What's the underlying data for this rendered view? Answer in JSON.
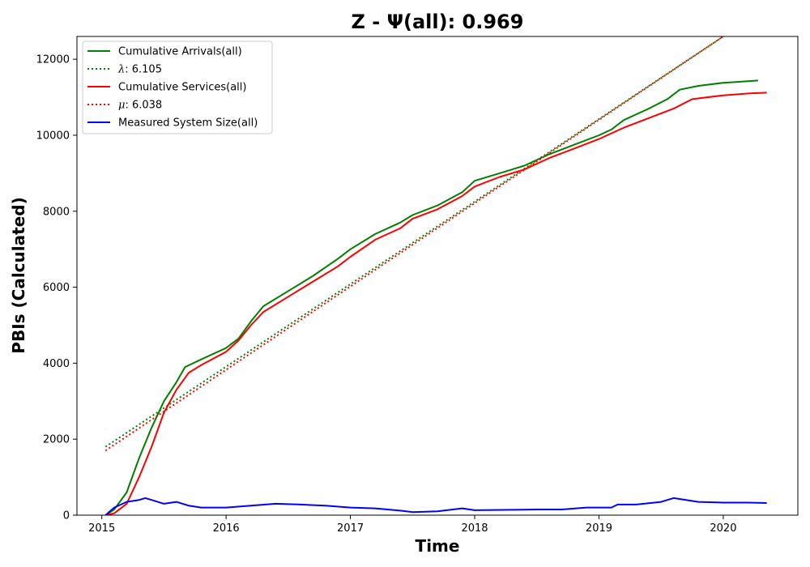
{
  "chart_data": {
    "type": "line",
    "title": "Z -  Ψ(all): 0.969",
    "xlabel": "Time",
    "ylabel": "PBIs (Calculated)",
    "xlim": [
      2014.8,
      2020.6
    ],
    "ylim": [
      0,
      12600
    ],
    "x_ticks": [
      2015,
      2016,
      2017,
      2018,
      2019,
      2020
    ],
    "x_tick_labels": [
      "2015",
      "2016",
      "2017",
      "2018",
      "2019",
      "2020"
    ],
    "y_ticks": [
      0,
      2000,
      4000,
      6000,
      8000,
      10000,
      12000
    ],
    "y_tick_labels": [
      "0",
      "2000",
      "4000",
      "6000",
      "8000",
      "10000",
      "12000"
    ],
    "grid": false,
    "legend_position": "top-left",
    "series": [
      {
        "name": "Cumulative Arrivals(all)",
        "color": "#008000",
        "style": "solid",
        "points": [
          [
            2015.03,
            0
          ],
          [
            2015.1,
            150
          ],
          [
            2015.2,
            600
          ],
          [
            2015.3,
            1500
          ],
          [
            2015.4,
            2300
          ],
          [
            2015.5,
            3000
          ],
          [
            2015.6,
            3500
          ],
          [
            2015.67,
            3900
          ],
          [
            2015.8,
            4100
          ],
          [
            2016.0,
            4400
          ],
          [
            2016.1,
            4650
          ],
          [
            2016.2,
            5100
          ],
          [
            2016.3,
            5500
          ],
          [
            2016.5,
            5900
          ],
          [
            2016.7,
            6300
          ],
          [
            2016.9,
            6750
          ],
          [
            2017.0,
            7000
          ],
          [
            2017.2,
            7400
          ],
          [
            2017.4,
            7700
          ],
          [
            2017.5,
            7900
          ],
          [
            2017.7,
            8150
          ],
          [
            2017.9,
            8500
          ],
          [
            2018.0,
            8800
          ],
          [
            2018.2,
            9000
          ],
          [
            2018.4,
            9200
          ],
          [
            2018.6,
            9500
          ],
          [
            2018.8,
            9750
          ],
          [
            2019.0,
            10000
          ],
          [
            2019.1,
            10150
          ],
          [
            2019.2,
            10400
          ],
          [
            2019.4,
            10700
          ],
          [
            2019.55,
            10950
          ],
          [
            2019.65,
            11200
          ],
          [
            2019.8,
            11300
          ],
          [
            2020.0,
            11380
          ],
          [
            2020.1,
            11400
          ],
          [
            2020.28,
            11440
          ]
        ]
      },
      {
        "name": "λ: 6.105",
        "color": "#008000",
        "style": "dotted",
        "points": [
          [
            2015.03,
            1800
          ],
          [
            2020.0,
            12600
          ]
        ]
      },
      {
        "name": "Cumulative Services(all)",
        "color": "#ff0000",
        "style": "solid",
        "points": [
          [
            2015.03,
            0
          ],
          [
            2015.1,
            50
          ],
          [
            2015.2,
            300
          ],
          [
            2015.3,
            1000
          ],
          [
            2015.4,
            1800
          ],
          [
            2015.5,
            2700
          ],
          [
            2015.6,
            3300
          ],
          [
            2015.7,
            3750
          ],
          [
            2015.8,
            3950
          ],
          [
            2016.0,
            4300
          ],
          [
            2016.1,
            4600
          ],
          [
            2016.2,
            5000
          ],
          [
            2016.3,
            5350
          ],
          [
            2016.5,
            5750
          ],
          [
            2016.7,
            6150
          ],
          [
            2016.9,
            6550
          ],
          [
            2017.0,
            6800
          ],
          [
            2017.2,
            7250
          ],
          [
            2017.4,
            7550
          ],
          [
            2017.5,
            7800
          ],
          [
            2017.7,
            8050
          ],
          [
            2017.9,
            8400
          ],
          [
            2018.0,
            8650
          ],
          [
            2018.2,
            8900
          ],
          [
            2018.4,
            9100
          ],
          [
            2018.6,
            9400
          ],
          [
            2018.8,
            9650
          ],
          [
            2019.0,
            9900
          ],
          [
            2019.1,
            10050
          ],
          [
            2019.2,
            10200
          ],
          [
            2019.4,
            10450
          ],
          [
            2019.6,
            10700
          ],
          [
            2019.75,
            10950
          ],
          [
            2020.0,
            11050
          ],
          [
            2020.2,
            11100
          ],
          [
            2020.35,
            11120
          ]
        ]
      },
      {
        "name": "μ: 6.038",
        "color": "#ff0000",
        "style": "dotted",
        "points": [
          [
            2015.03,
            1700
          ],
          [
            2020.0,
            12600
          ]
        ]
      },
      {
        "name": "Measured System Size(all)",
        "color": "#0000ff",
        "style": "solid",
        "points": [
          [
            2015.03,
            0
          ],
          [
            2015.1,
            200
          ],
          [
            2015.2,
            350
          ],
          [
            2015.3,
            400
          ],
          [
            2015.35,
            450
          ],
          [
            2015.4,
            400
          ],
          [
            2015.5,
            300
          ],
          [
            2015.6,
            350
          ],
          [
            2015.7,
            250
          ],
          [
            2015.8,
            200
          ],
          [
            2016.0,
            200
          ],
          [
            2016.2,
            250
          ],
          [
            2016.4,
            300
          ],
          [
            2016.6,
            280
          ],
          [
            2016.8,
            250
          ],
          [
            2017.0,
            200
          ],
          [
            2017.2,
            180
          ],
          [
            2017.4,
            120
          ],
          [
            2017.5,
            80
          ],
          [
            2017.7,
            100
          ],
          [
            2017.9,
            180
          ],
          [
            2018.0,
            130
          ],
          [
            2018.3,
            140
          ],
          [
            2018.5,
            150
          ],
          [
            2018.7,
            150
          ],
          [
            2018.9,
            200
          ],
          [
            2019.1,
            200
          ],
          [
            2019.15,
            280
          ],
          [
            2019.3,
            280
          ],
          [
            2019.5,
            350
          ],
          [
            2019.6,
            450
          ],
          [
            2019.7,
            400
          ],
          [
            2019.8,
            350
          ],
          [
            2020.0,
            330
          ],
          [
            2020.2,
            330
          ],
          [
            2020.35,
            320
          ]
        ]
      }
    ]
  }
}
